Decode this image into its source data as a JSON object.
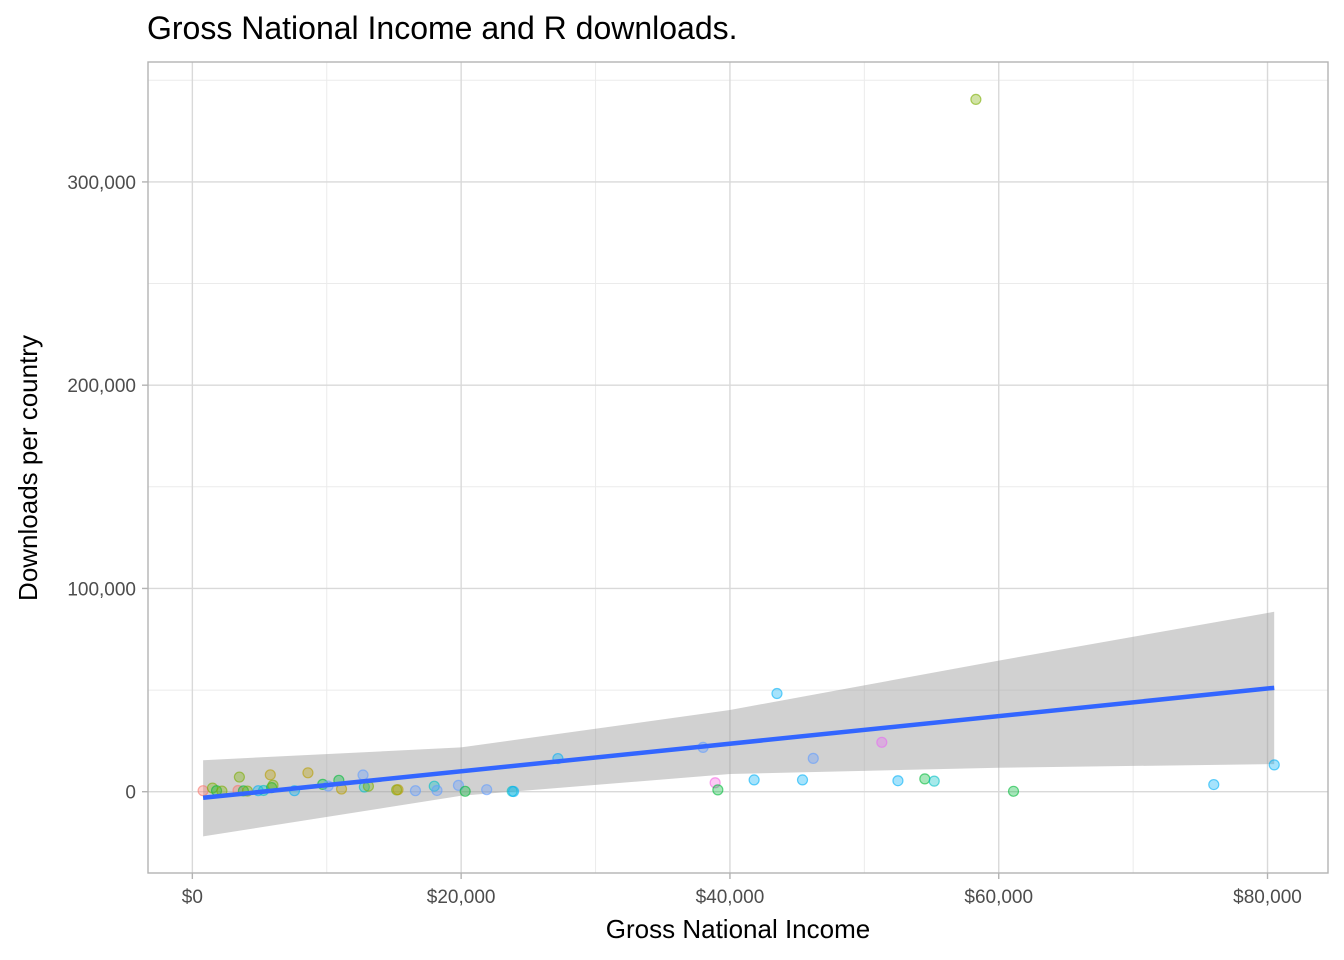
{
  "chart_data": {
    "type": "scatter",
    "title": "Gross National Income and R downloads.",
    "xlabel": "Gross National Income",
    "ylabel": "Downloads per country",
    "xlim": [
      -3300,
      84500
    ],
    "ylim": [
      -40000,
      359000
    ],
    "x_ticks": [
      0,
      20000,
      40000,
      60000,
      80000
    ],
    "x_tick_labels": [
      "$0",
      "$20,000",
      "$40,000",
      "$60,000",
      "$80,000"
    ],
    "y_ticks": [
      0,
      100000,
      200000,
      300000
    ],
    "y_tick_labels": [
      "0",
      "100,000",
      "200,000",
      "300,000"
    ],
    "grid": true,
    "points": [
      {
        "x": 800,
        "y": 500,
        "color": "#F8766D"
      },
      {
        "x": 1500,
        "y": 1800,
        "color": "#7CAE00"
      },
      {
        "x": 1800,
        "y": 500,
        "color": "#00BA38"
      },
      {
        "x": 2200,
        "y": 300,
        "color": "#7CAE00"
      },
      {
        "x": 3400,
        "y": 600,
        "color": "#F8766D"
      },
      {
        "x": 3500,
        "y": 7200,
        "color": "#7CAE00"
      },
      {
        "x": 3800,
        "y": 400,
        "color": "#00BA38"
      },
      {
        "x": 4100,
        "y": 300,
        "color": "#7CAE00"
      },
      {
        "x": 4900,
        "y": 500,
        "color": "#00B0F6"
      },
      {
        "x": 5300,
        "y": 600,
        "color": "#00BFC4"
      },
      {
        "x": 5800,
        "y": 8300,
        "color": "#B79F00"
      },
      {
        "x": 5900,
        "y": 2000,
        "color": "#00BA38"
      },
      {
        "x": 6000,
        "y": 3200,
        "color": "#7CAE00"
      },
      {
        "x": 7600,
        "y": 500,
        "color": "#00B0F6"
      },
      {
        "x": 8600,
        "y": 9300,
        "color": "#B79F00"
      },
      {
        "x": 9700,
        "y": 3600,
        "color": "#00BA38"
      },
      {
        "x": 10100,
        "y": 2800,
        "color": "#619CFF"
      },
      {
        "x": 10900,
        "y": 5600,
        "color": "#00BA38"
      },
      {
        "x": 11100,
        "y": 1300,
        "color": "#B79F00"
      },
      {
        "x": 12700,
        "y": 8200,
        "color": "#619CFF"
      },
      {
        "x": 12800,
        "y": 2300,
        "color": "#00BFC4"
      },
      {
        "x": 13100,
        "y": 2700,
        "color": "#7CAE00"
      },
      {
        "x": 15200,
        "y": 900,
        "color": "#7CAE00"
      },
      {
        "x": 15300,
        "y": 1000,
        "color": "#B79F00"
      },
      {
        "x": 16600,
        "y": 500,
        "color": "#619CFF"
      },
      {
        "x": 18000,
        "y": 2700,
        "color": "#00BFC4"
      },
      {
        "x": 18200,
        "y": 600,
        "color": "#619CFF"
      },
      {
        "x": 19800,
        "y": 3100,
        "color": "#619CFF"
      },
      {
        "x": 20300,
        "y": 200,
        "color": "#00BA38"
      },
      {
        "x": 21900,
        "y": 1000,
        "color": "#619CFF"
      },
      {
        "x": 23800,
        "y": 200,
        "color": "#00BFC4"
      },
      {
        "x": 23900,
        "y": 100,
        "color": "#00B0F6"
      },
      {
        "x": 27200,
        "y": 16300,
        "color": "#00B0F6"
      },
      {
        "x": 38000,
        "y": 21800,
        "color": "#619CFF"
      },
      {
        "x": 38900,
        "y": 4400,
        "color": "#F564E3"
      },
      {
        "x": 39100,
        "y": 900,
        "color": "#00BA38"
      },
      {
        "x": 41800,
        "y": 5800,
        "color": "#00B0F6"
      },
      {
        "x": 43500,
        "y": 48300,
        "color": "#00B0F6"
      },
      {
        "x": 45400,
        "y": 5800,
        "color": "#00B0F6"
      },
      {
        "x": 46200,
        "y": 16400,
        "color": "#619CFF"
      },
      {
        "x": 51300,
        "y": 24300,
        "color": "#E76BF3"
      },
      {
        "x": 52500,
        "y": 5400,
        "color": "#00B0F6"
      },
      {
        "x": 54500,
        "y": 6300,
        "color": "#00BA38"
      },
      {
        "x": 55200,
        "y": 5200,
        "color": "#00BFC4"
      },
      {
        "x": 58300,
        "y": 340600,
        "color": "#7CAE00"
      },
      {
        "x": 61100,
        "y": 200,
        "color": "#00BA38"
      },
      {
        "x": 76000,
        "y": 3500,
        "color": "#00B0F6"
      },
      {
        "x": 80500,
        "y": 13200,
        "color": "#00B0F6"
      }
    ],
    "trend_line": {
      "x": [
        800,
        80500
      ],
      "y": [
        -3000,
        51100
      ],
      "color": "#3366FF"
    },
    "confidence_band": {
      "x": [
        800,
        20000,
        40000,
        60000,
        80500
      ],
      "lower": [
        -22000,
        -2000,
        8700,
        11800,
        13600
      ],
      "upper": [
        15500,
        21800,
        40200,
        64500,
        88500
      ],
      "color": "#999999"
    }
  }
}
